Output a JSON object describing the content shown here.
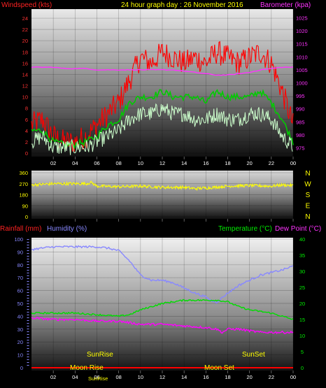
{
  "chart_data": [
    {
      "type": "line",
      "title": "24 hour graph day : 26 November 2016",
      "left_axis_label": "Windspeed (kts)",
      "right_axis_label": "Barometer (kpa)",
      "x_ticks": [
        "02",
        "04",
        "06",
        "08",
        "10",
        "12",
        "14",
        "16",
        "18",
        "20",
        "22",
        "00"
      ],
      "left_ylim": [
        0,
        25
      ],
      "left_ticks": [
        0,
        2,
        4,
        6,
        8,
        10,
        12,
        14,
        16,
        18,
        20,
        22,
        24
      ],
      "right_ylim": [
        973,
        1027
      ],
      "right_ticks": [
        975,
        980,
        985,
        990,
        995,
        1000,
        1005,
        1010,
        1015,
        1020,
        1025
      ],
      "colors": {
        "gust": "#ff0000",
        "average": "#00cc00",
        "speed": "#ccffcc",
        "barometer": "#ff33ff"
      },
      "series": [
        {
          "key": "gust",
          "hour": [
            0,
            1,
            2,
            3,
            4,
            5,
            6,
            7,
            8,
            9,
            10,
            11,
            12,
            13,
            14,
            15,
            16,
            17,
            18,
            19,
            20,
            21,
            22,
            23,
            24
          ],
          "values": [
            5,
            6,
            3,
            2,
            2,
            3,
            5,
            7,
            9,
            13,
            17,
            16,
            18,
            17,
            16,
            17,
            16,
            18,
            17,
            16,
            17,
            18,
            16,
            11,
            5
          ]
        },
        {
          "key": "average",
          "hour": [
            0,
            1,
            2,
            3,
            4,
            5,
            6,
            7,
            8,
            9,
            10,
            11,
            12,
            13,
            14,
            15,
            16,
            17,
            18,
            19,
            20,
            21,
            22,
            23,
            24
          ],
          "values": [
            4,
            4,
            2,
            1.5,
            1.5,
            2,
            3,
            5,
            6,
            9,
            10,
            10,
            11,
            10,
            10,
            10,
            9,
            11,
            10,
            10,
            10,
            11,
            9,
            6,
            2
          ]
        },
        {
          "key": "speed",
          "hour": [
            0,
            1,
            2,
            3,
            4,
            5,
            6,
            7,
            8,
            9,
            10,
            11,
            12,
            13,
            14,
            15,
            16,
            17,
            18,
            19,
            20,
            21,
            22,
            23,
            24
          ],
          "values": [
            2,
            3,
            1,
            1,
            1,
            1,
            2,
            3,
            4,
            6,
            7,
            7,
            8,
            7,
            7,
            6,
            6,
            7,
            6,
            6,
            7,
            7,
            6,
            3,
            1
          ]
        },
        {
          "key": "barometer",
          "hour": [
            0,
            1,
            2,
            3,
            4,
            5,
            6,
            7,
            8,
            9,
            10,
            11,
            12,
            13,
            14,
            15,
            16,
            17,
            18,
            19,
            20,
            21,
            22,
            23,
            24
          ],
          "values": [
            1006,
            1006,
            1006,
            1005.5,
            1005.5,
            1005.5,
            1005,
            1005,
            1005,
            1005,
            1005,
            1005,
            1005,
            1005,
            1004.5,
            1004,
            1003.5,
            1003,
            1003,
            1003.5,
            1004,
            1005,
            1005.5,
            1006,
            1006
          ]
        }
      ]
    },
    {
      "type": "line",
      "left_ylim": [
        0,
        360
      ],
      "left_ticks": [
        0,
        90,
        180,
        270,
        360
      ],
      "compass_labels": [
        "N",
        "W",
        "S",
        "E",
        "N"
      ],
      "series": [
        {
          "key": "wind_direction",
          "color": "#ffff00",
          "hour": [
            0,
            1,
            2,
            3,
            4,
            5,
            5.5,
            6,
            8,
            10,
            12,
            14,
            15,
            16,
            18,
            20,
            22,
            23,
            24
          ],
          "values": [
            260,
            265,
            270,
            270,
            270,
            270,
            280,
            250,
            245,
            250,
            240,
            240,
            230,
            235,
            250,
            255,
            250,
            260,
            255
          ]
        }
      ]
    },
    {
      "type": "line",
      "left_axis_label": "Rainfall (mm)",
      "humidity_label": "Humidity (%)",
      "temperature_label": "Temperature (°C)",
      "dew_point_label": "Dew Point (°C)",
      "x_ticks": [
        "02",
        "04",
        "06",
        "08",
        "10",
        "12",
        "14",
        "16",
        "18",
        "20",
        "22",
        "00"
      ],
      "left_ylim": [
        0,
        100
      ],
      "left_ticks": [
        0,
        10,
        20,
        30,
        40,
        50,
        60,
        70,
        80,
        90,
        100
      ],
      "right_ylim": [
        0,
        40
      ],
      "right_ticks": [
        0,
        5,
        10,
        15,
        20,
        25,
        30,
        35,
        40
      ],
      "colors": {
        "humidity": "#8888ff",
        "temperature": "#00dd00",
        "dew_point": "#ff00ff",
        "rainfall": "#ff0000",
        "temp_markers": "#8888ff"
      },
      "annotations": {
        "sunrise": "SunRise",
        "sunset": "SunSet",
        "moonrise": "Moon Rise",
        "moonset": "Moon Set",
        "sunrise_small": "SunRise"
      },
      "series": [
        {
          "key": "humidity",
          "hour": [
            0,
            1,
            2,
            3,
            4,
            5,
            6,
            7,
            8,
            9,
            10,
            11,
            12,
            13,
            14,
            15,
            16,
            16.5,
            17,
            18,
            19,
            20,
            21,
            22,
            23,
            24
          ],
          "values": [
            92,
            93,
            94,
            94,
            94,
            94,
            94,
            93,
            91,
            83,
            72,
            68,
            68,
            66,
            62,
            58,
            55,
            52,
            51,
            58,
            64,
            68,
            72,
            74,
            76,
            79
          ]
        },
        {
          "key": "temperature",
          "hour": [
            0,
            2,
            4,
            6,
            8,
            9,
            10,
            11,
            12,
            13,
            14,
            15,
            16,
            17,
            18,
            19,
            20,
            21,
            22,
            23,
            24
          ],
          "values": [
            17,
            17,
            17,
            16.5,
            16,
            16.5,
            18,
            19,
            20,
            20.5,
            21,
            21,
            21,
            21,
            20.5,
            19,
            18,
            17.5,
            17,
            16,
            15
          ]
        },
        {
          "key": "dew_point",
          "hour": [
            0,
            2,
            4,
            6,
            8,
            9,
            10,
            12,
            14,
            16,
            17,
            17.5,
            18,
            19,
            20,
            21,
            22,
            23,
            24
          ],
          "values": [
            15.5,
            15,
            15,
            14.5,
            14.5,
            14,
            13.5,
            13.5,
            13,
            12.5,
            12,
            11,
            12,
            12,
            11.5,
            11,
            11,
            11,
            11
          ]
        },
        {
          "key": "rainfall",
          "hour": [
            0,
            24
          ],
          "values": [
            0,
            0
          ]
        }
      ]
    }
  ]
}
